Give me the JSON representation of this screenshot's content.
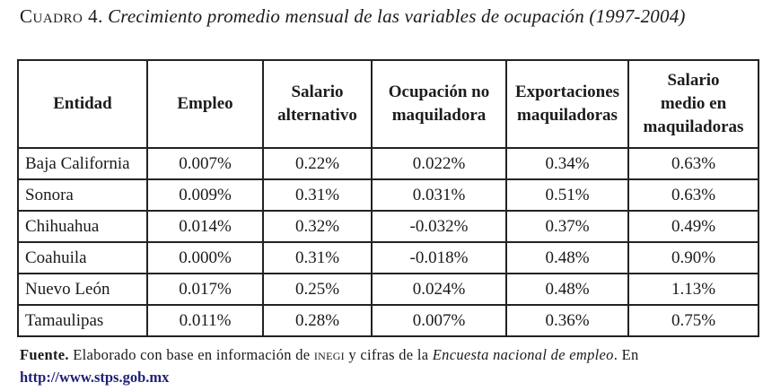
{
  "title": {
    "label": "Cuadro 4.",
    "text": "Crecimiento promedio mensual de las variables de ocupación (1997-2004)"
  },
  "table": {
    "headers": [
      [
        "Entidad"
      ],
      [
        "Empleo"
      ],
      [
        "Salario",
        "alternativo"
      ],
      [
        "Ocupación no",
        "maquiladora"
      ],
      [
        "Exportaciones",
        "maquiladoras"
      ],
      [
        "Salario",
        "medio en",
        "maquiladoras"
      ]
    ],
    "rows": [
      [
        "Baja California",
        "0.007%",
        "0.22%",
        "0.022%",
        "0.34%",
        "0.63%"
      ],
      [
        "Sonora",
        "0.009%",
        "0.31%",
        "0.031%",
        "0.51%",
        "0.63%"
      ],
      [
        "Chihuahua",
        "0.014%",
        "0.32%",
        "-0.032%",
        "0.37%",
        "0.49%"
      ],
      [
        "Coahuila",
        "0.000%",
        "0.31%",
        "-0.018%",
        "0.48%",
        "0.90%"
      ],
      [
        "Nuevo León",
        "0.017%",
        "0.25%",
        "0.024%",
        "0.48%",
        "1.13%"
      ],
      [
        "Tamaulipas",
        "0.011%",
        "0.28%",
        "0.007%",
        "0.36%",
        "0.75%"
      ]
    ]
  },
  "source": {
    "lead": "Fuente.",
    "text1": " Elaborado con base en información de ",
    "org": "inegi",
    "text2": " y cifras de la ",
    "survey": "Encuesta nacional de empleo",
    "text3": ". En",
    "link": "http://www.stps.gob.mx"
  }
}
